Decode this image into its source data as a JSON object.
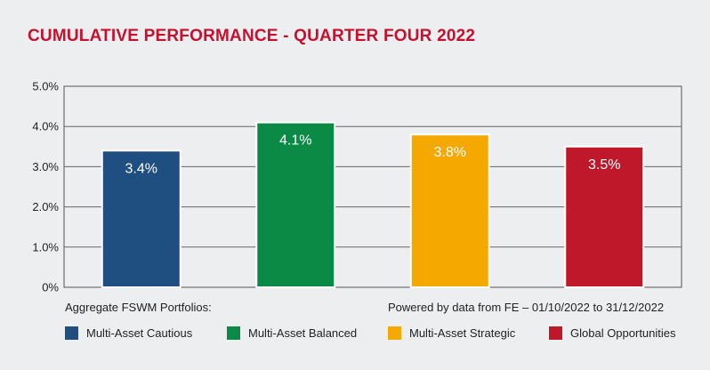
{
  "title": "CUMULATIVE PERFORMANCE - QUARTER FOUR 2022",
  "notes": {
    "left": "Aggregate FSWM Portfolios:",
    "right": "Powered by data from FE – 01/10/2022 to 31/12/2022"
  },
  "chart_data": {
    "type": "bar",
    "categories": [
      "Multi-Asset Cautious",
      "Multi-Asset Balanced",
      "Multi-Asset Strategic",
      "Global Opportunities"
    ],
    "values": [
      3.4,
      4.1,
      3.8,
      3.5
    ],
    "value_labels": [
      "3.4%",
      "4.1%",
      "3.8%",
      "3.5%"
    ],
    "colors": [
      "#1f4e80",
      "#0a8a45",
      "#f5a800",
      "#c0182b"
    ],
    "ylim": [
      0,
      5
    ],
    "yticks": [
      0,
      1,
      2,
      3,
      4,
      5
    ],
    "ytick_labels": [
      "0%",
      "1.0%",
      "2.0%",
      "3.0%",
      "4.0%",
      "5.0%"
    ],
    "grid": true,
    "legend_position": "bottom",
    "xlabel": "",
    "ylabel": ""
  }
}
